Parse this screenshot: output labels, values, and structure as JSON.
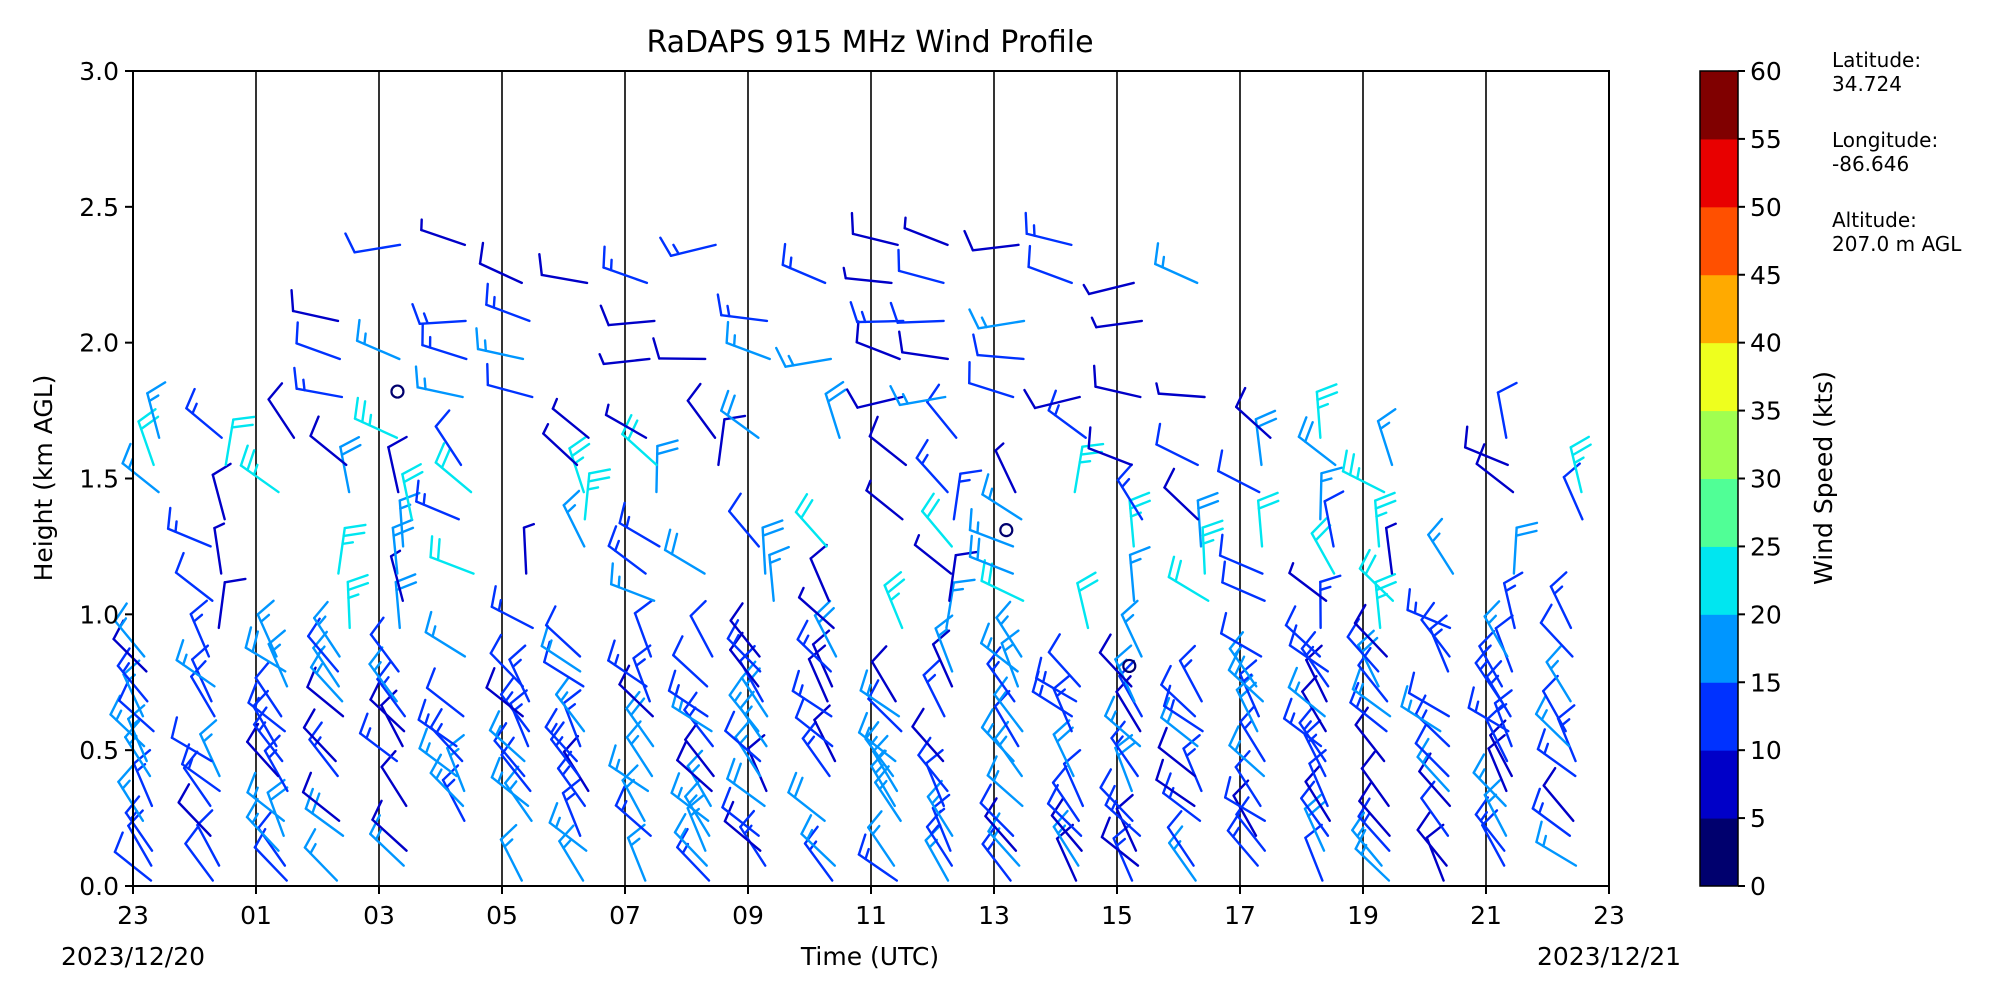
{
  "chart_data": {
    "type": "wind_barbs",
    "title": "RaDAPS 915 MHz Wind Profile",
    "xlabel": "Time (UTC)",
    "ylabel": "Height (km AGL)",
    "ylim": [
      0,
      3.0
    ],
    "yticks": [
      "0.0",
      "0.5",
      "1.0",
      "1.5",
      "2.0",
      "2.5",
      "3.0"
    ],
    "xlim_hours": [
      -1,
      23
    ],
    "xticks": [
      "23",
      "01",
      "03",
      "05",
      "07",
      "09",
      "11",
      "13",
      "15",
      "17",
      "19",
      "21",
      "23"
    ],
    "date_start": "2023/12/20",
    "date_end": "2023/12/21",
    "grid": "vertical lines every 2 hours",
    "colorbar": {
      "label": "Wind Speed (kts)",
      "ticks": [
        "0",
        "5",
        "10",
        "15",
        "20",
        "25",
        "30",
        "35",
        "40",
        "45",
        "50",
        "55",
        "60"
      ],
      "colors": [
        "#00006e",
        "#0000c8",
        "#0032ff",
        "#0096ff",
        "#00e6f0",
        "#50ff96",
        "#a0ff50",
        "#eeff1e",
        "#ffaa00",
        "#ff5000",
        "#e80000",
        "#800000"
      ]
    }
  },
  "station": {
    "lat_label": "Latitude:",
    "lat_value": "34.724",
    "lon_label": "Longitude:",
    "lon_value": "-86.646",
    "alt_label": "Altitude:",
    "alt_value": "207.0 m AGL"
  }
}
